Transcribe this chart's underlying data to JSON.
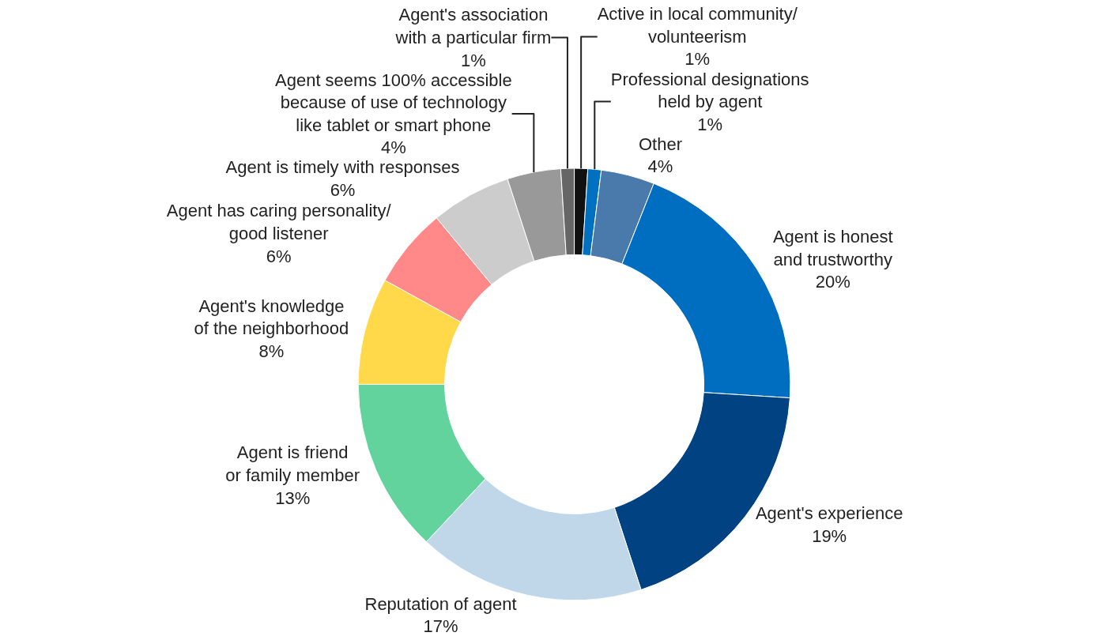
{
  "chart_data": {
    "type": "donut",
    "categories": [
      "Active in local community/\nvolunteerism",
      "Professional designations\nheld by agent",
      "Other",
      "Agent is honest\nand trustworthy",
      "Agent's experience",
      "Reputation of agent",
      "Agent is friend\nor family member",
      "Agent's knowledge\nof the neighborhood",
      "Agent has caring personality/\ngood listener",
      "Agent is timely with responses",
      "Agent seems 100% accessible\nbecause of use of technology\nlike tablet or smart phone",
      "Agent's association\nwith a particular firm"
    ],
    "values": [
      1,
      1,
      4,
      20,
      19,
      17,
      13,
      8,
      6,
      6,
      4,
      1
    ],
    "value_labels": [
      "1%",
      "1%",
      "4%",
      "20%",
      "19%",
      "17%",
      "13%",
      "8%",
      "6%",
      "6%",
      "4%",
      "1%"
    ],
    "colors": [
      "#111111",
      "#0070c0",
      "#4a7aab",
      "#006ec0",
      "#004282",
      "#c0d7ea",
      "#62d39c",
      "#ffd94a",
      "#ff8888",
      "#cccccc",
      "#999999",
      "#666666"
    ],
    "legend": false
  }
}
